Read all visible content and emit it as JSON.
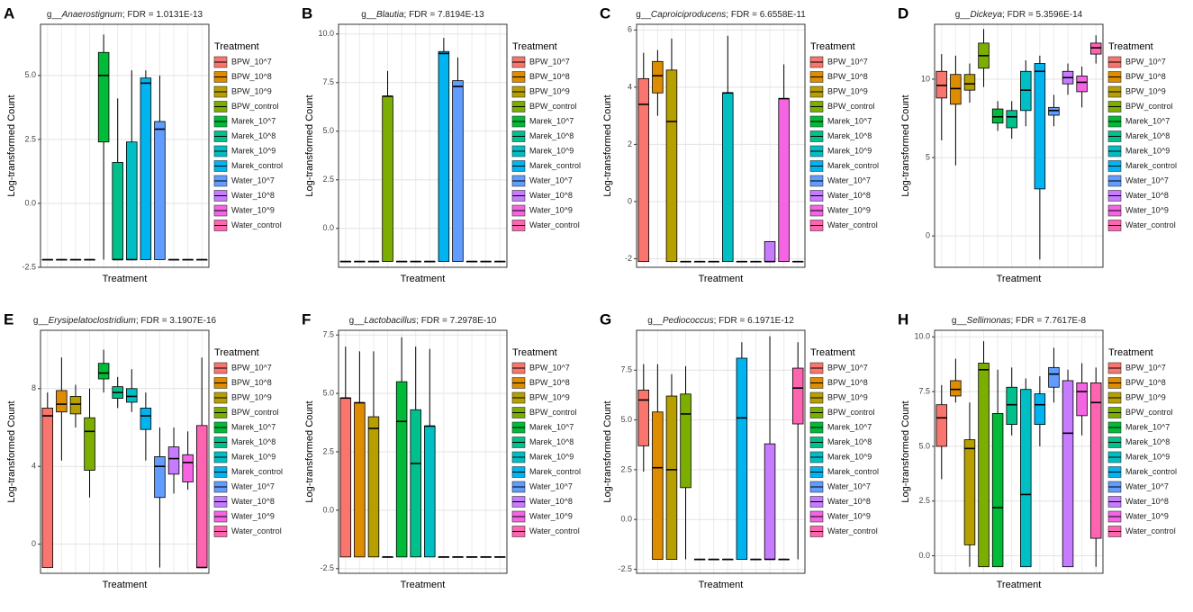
{
  "chart_data": [
    {
      "type": "box",
      "panel": "A",
      "title": [
        "g__",
        "Anaerostignum",
        "; FDR = 1.0131E-13"
      ],
      "x_label": "Treatment",
      "y_label": "Log-transformed Count",
      "legend_title": "Treatment",
      "categories": [
        "BPW_10^7",
        "BPW_10^8",
        "BPW_10^9",
        "BPW_control",
        "Marek_10^7",
        "Marek_10^8",
        "Marek_10^9",
        "Marek_control",
        "Water_10^7",
        "Water_10^8",
        "Water_10^9",
        "Water_control"
      ],
      "colors": [
        "#F8766D",
        "#DE8C00",
        "#B79F00",
        "#7CAE00",
        "#00BA38",
        "#00C08B",
        "#00BFC4",
        "#00B4F0",
        "#619CFF",
        "#C77CFF",
        "#F564E3",
        "#FF64B0"
      ],
      "ylim": [
        -2.5,
        7
      ],
      "yticks": [
        {
          "value": -2.5,
          "label": "-2.5"
        },
        {
          "value": 0,
          "label": "0.0"
        },
        {
          "value": 2.5,
          "label": "2.5"
        },
        {
          "value": 5,
          "label": "5.0"
        }
      ],
      "grid": true,
      "boxes": [
        [
          -2.2,
          -2.2,
          -2.2,
          -2.2,
          -2.2
        ],
        [
          -2.2,
          -2.2,
          -2.2,
          -2.2,
          -2.2
        ],
        [
          -2.2,
          -2.2,
          -2.2,
          -2.2,
          -2.2
        ],
        [
          -2.2,
          -2.2,
          -2.2,
          -2.2,
          -2.2
        ],
        [
          -2.2,
          2.4,
          5.0,
          5.9,
          6.6
        ],
        [
          -2.2,
          -2.2,
          -2.2,
          1.6,
          4.1
        ],
        [
          -2.2,
          -2.2,
          -2.2,
          2.4,
          5.2
        ],
        [
          -2.2,
          -2.2,
          4.7,
          4.9,
          5.2
        ],
        [
          -2.2,
          -2.2,
          2.9,
          3.2,
          5.0
        ],
        [
          -2.2,
          -2.2,
          -2.2,
          -2.2,
          -2.2
        ],
        [
          -2.2,
          -2.2,
          -2.2,
          -2.2,
          -2.2
        ],
        [
          -2.2,
          -2.2,
          -2.2,
          -2.2,
          -2.2
        ]
      ]
    },
    {
      "type": "box",
      "panel": "B",
      "title": [
        "g__",
        "Blautia",
        "; FDR = 7.8194E-13"
      ],
      "x_label": "Treatment",
      "y_label": "Log-transformed Count",
      "legend_title": "Treatment",
      "categories": [
        "BPW_10^7",
        "BPW_10^8",
        "BPW_10^9",
        "BPW_control",
        "Marek_10^7",
        "Marek_10^8",
        "Marek_10^9",
        "Marek_control",
        "Water_10^7",
        "Water_10^8",
        "Water_10^9",
        "Water_control"
      ],
      "colors": [
        "#F8766D",
        "#DE8C00",
        "#B79F00",
        "#7CAE00",
        "#00BA38",
        "#00C08B",
        "#00BFC4",
        "#00B4F0",
        "#619CFF",
        "#C77CFF",
        "#F564E3",
        "#FF64B0"
      ],
      "ylim": [
        -2,
        10.5
      ],
      "yticks": [
        {
          "value": 0,
          "label": "0.0"
        },
        {
          "value": 2.5,
          "label": "2.5"
        },
        {
          "value": 5,
          "label": "5.0"
        },
        {
          "value": 7.5,
          "label": "7.5"
        },
        {
          "value": 10,
          "label": "10.0"
        }
      ],
      "grid": true,
      "boxes": [
        [
          -1.7,
          -1.7,
          -1.7,
          -1.7,
          -1.7
        ],
        [
          -1.7,
          -1.7,
          -1.7,
          -1.7,
          -1.7
        ],
        [
          -1.7,
          -1.7,
          -1.7,
          -1.7,
          -1.7
        ],
        [
          -1.7,
          -1.7,
          6.8,
          6.8,
          8.1
        ],
        [
          -1.7,
          -1.7,
          -1.7,
          -1.7,
          -1.7
        ],
        [
          -1.7,
          -1.7,
          -1.7,
          -1.7,
          -1.7
        ],
        [
          -1.7,
          -1.7,
          -1.7,
          -1.7,
          -1.7
        ],
        [
          -1.7,
          -1.7,
          9.0,
          9.1,
          9.8
        ],
        [
          -1.7,
          -1.7,
          7.3,
          7.6,
          8.8
        ],
        [
          -1.7,
          -1.7,
          -1.7,
          -1.7,
          -1.7
        ],
        [
          -1.7,
          -1.7,
          -1.7,
          -1.7,
          -1.7
        ],
        [
          -1.7,
          -1.7,
          -1.7,
          -1.7,
          -1.7
        ]
      ]
    },
    {
      "type": "box",
      "panel": "C",
      "title": [
        "g__",
        "Caproiciproducens",
        "; FDR = 6.6558E-11"
      ],
      "x_label": "Treatment",
      "y_label": "Log-transformed Count",
      "legend_title": "Treatment",
      "categories": [
        "BPW_10^7",
        "BPW_10^8",
        "BPW_10^9",
        "BPW_control",
        "Marek_10^7",
        "Marek_10^8",
        "Marek_10^9",
        "Marek_control",
        "Water_10^7",
        "Water_10^8",
        "Water_10^9",
        "Water_control"
      ],
      "colors": [
        "#F8766D",
        "#DE8C00",
        "#B79F00",
        "#7CAE00",
        "#00BA38",
        "#00C08B",
        "#00BFC4",
        "#00B4F0",
        "#619CFF",
        "#C77CFF",
        "#F564E3",
        "#FF64B0"
      ],
      "ylim": [
        -2.3,
        6.2
      ],
      "yticks": [
        -2,
        0,
        2,
        4,
        6
      ],
      "grid": true,
      "boxes": [
        [
          -2.1,
          -2.1,
          3.4,
          4.3,
          5.2
        ],
        [
          3.0,
          3.8,
          4.4,
          4.9,
          5.3
        ],
        [
          -2.1,
          -2.1,
          2.8,
          4.6,
          5.7
        ],
        [
          -2.1,
          -2.1,
          -2.1,
          -2.1,
          -2.1
        ],
        [
          -2.1,
          -2.1,
          -2.1,
          -2.1,
          -2.1
        ],
        [
          -2.1,
          -2.1,
          -2.1,
          -2.1,
          -2.1
        ],
        [
          -2.1,
          -2.1,
          3.8,
          3.8,
          5.8
        ],
        [
          -2.1,
          -2.1,
          -2.1,
          -2.1,
          -2.1
        ],
        [
          -2.1,
          -2.1,
          -2.1,
          -2.1,
          -2.1
        ],
        [
          -2.1,
          -2.1,
          -2.1,
          -1.4,
          -1.4
        ],
        [
          -2.1,
          -2.1,
          3.6,
          3.6,
          4.8
        ],
        [
          -2.1,
          -2.1,
          -2.1,
          -2.1,
          -2.1
        ]
      ]
    },
    {
      "type": "box",
      "panel": "D",
      "title": [
        "g__",
        "Dickeya",
        "; FDR = 5.3596E-14"
      ],
      "x_label": "Treatment",
      "y_label": "Log-transformed Count",
      "legend_title": "Treatment",
      "categories": [
        "BPW_10^7",
        "BPW_10^8",
        "BPW_10^9",
        "BPW_control",
        "Marek_10^7",
        "Marek_10^8",
        "Marek_10^9",
        "Marek_control",
        "Water_10^7",
        "Water_10^8",
        "Water_10^9",
        "Water_control"
      ],
      "colors": [
        "#F8766D",
        "#DE8C00",
        "#B79F00",
        "#7CAE00",
        "#00BA38",
        "#00C08B",
        "#00BFC4",
        "#00B4F0",
        "#619CFF",
        "#C77CFF",
        "#F564E3",
        "#FF64B0"
      ],
      "ylim": [
        -2,
        13.5
      ],
      "yticks": [
        0,
        5,
        10
      ],
      "grid": true,
      "boxes": [
        [
          6.1,
          8.8,
          9.6,
          10.5,
          11.6
        ],
        [
          4.5,
          8.4,
          9.4,
          10.3,
          11.5
        ],
        [
          8.5,
          9.3,
          9.7,
          10.3,
          11.0
        ],
        [
          9.5,
          10.7,
          11.5,
          12.3,
          13.2
        ],
        [
          6.7,
          7.2,
          7.6,
          8.1,
          8.6
        ],
        [
          6.2,
          6.9,
          7.6,
          8.0,
          8.6
        ],
        [
          7.0,
          8.0,
          9.3,
          10.5,
          11.2
        ],
        [
          -1.5,
          3.0,
          10.5,
          11.0,
          11.5
        ],
        [
          7.0,
          7.7,
          8.0,
          8.2,
          9.0
        ],
        [
          9.0,
          9.7,
          10.1,
          10.5,
          11.0
        ],
        [
          8.2,
          9.2,
          9.8,
          10.2,
          10.8
        ],
        [
          11.0,
          11.6,
          12.0,
          12.3,
          12.8
        ]
      ]
    },
    {
      "type": "box",
      "panel": "E",
      "title": [
        "g__",
        "Erysipelatoclostridium",
        "; FDR = 3.1907E-16"
      ],
      "x_label": "Treatment",
      "y_label": "Log-transformed Count",
      "legend_title": "Treatment",
      "categories": [
        "BPW_10^7",
        "BPW_10^8",
        "BPW_10^9",
        "BPW_control",
        "Marek_10^7",
        "Marek_10^8",
        "Marek_10^9",
        "Marek_control",
        "Water_10^7",
        "Water_10^8",
        "Water_10^9",
        "Water_control"
      ],
      "colors": [
        "#F8766D",
        "#DE8C00",
        "#B79F00",
        "#7CAE00",
        "#00BA38",
        "#00C08B",
        "#00BFC4",
        "#00B4F0",
        "#619CFF",
        "#C77CFF",
        "#F564E3",
        "#FF64B0"
      ],
      "ylim": [
        -1.5,
        11
      ],
      "yticks": [
        0,
        4,
        8
      ],
      "grid": true,
      "boxes": [
        [
          -1.2,
          -1.2,
          6.6,
          7.0,
          7.8
        ],
        [
          4.3,
          6.8,
          7.2,
          7.9,
          9.6
        ],
        [
          6.0,
          6.7,
          7.2,
          7.6,
          8.2
        ],
        [
          2.4,
          3.8,
          5.8,
          6.5,
          8.0
        ],
        [
          7.8,
          8.5,
          8.8,
          9.3,
          10.0
        ],
        [
          7.0,
          7.5,
          7.8,
          8.1,
          8.6
        ],
        [
          6.8,
          7.3,
          7.6,
          8.0,
          9.0
        ],
        [
          4.3,
          5.9,
          6.6,
          7.0,
          7.8
        ],
        [
          -1.2,
          2.4,
          4.0,
          4.5,
          6.0
        ],
        [
          2.6,
          3.6,
          4.4,
          5.0,
          6.0
        ],
        [
          2.8,
          3.2,
          4.2,
          4.6,
          5.8
        ],
        [
          -1.2,
          -1.2,
          -1.2,
          6.1,
          9.6
        ]
      ]
    },
    {
      "type": "box",
      "panel": "F",
      "title": [
        "g__",
        "Lactobacillus",
        "; FDR = 7.2978E-10"
      ],
      "x_label": "Treatment",
      "y_label": "Log-transformed Count",
      "legend_title": "Treatment",
      "categories": [
        "BPW_10^7",
        "BPW_10^8",
        "BPW_10^9",
        "BPW_control",
        "Marek_10^7",
        "Marek_10^8",
        "Marek_10^9",
        "Marek_control",
        "Water_10^7",
        "Water_10^8",
        "Water_10^9",
        "Water_control"
      ],
      "colors": [
        "#F8766D",
        "#DE8C00",
        "#B79F00",
        "#7CAE00",
        "#00BA38",
        "#00C08B",
        "#00BFC4",
        "#00B4F0",
        "#619CFF",
        "#C77CFF",
        "#F564E3",
        "#FF64B0"
      ],
      "ylim": [
        -2.7,
        7.7
      ],
      "yticks": [
        {
          "value": -2.5,
          "label": "-2.5"
        },
        {
          "value": 0,
          "label": "0.0"
        },
        {
          "value": 2.5,
          "label": "2.5"
        },
        {
          "value": 5,
          "label": "5.0"
        },
        {
          "value": 7.5,
          "label": "7.5"
        }
      ],
      "grid": true,
      "boxes": [
        [
          -2.0,
          -2.0,
          4.8,
          4.8,
          7.0
        ],
        [
          -2.0,
          -2.0,
          4.6,
          4.6,
          6.8
        ],
        [
          -2.0,
          -2.0,
          3.5,
          4.0,
          6.8
        ],
        [
          -2.0,
          -2.0,
          -2.0,
          -2.0,
          -2.0
        ],
        [
          -2.0,
          -2.0,
          3.8,
          5.5,
          7.4
        ],
        [
          -2.0,
          -2.0,
          2.0,
          4.3,
          7.0
        ],
        [
          -2.0,
          -2.0,
          3.6,
          3.6,
          6.9
        ],
        [
          -2.0,
          -2.0,
          -2.0,
          -2.0,
          -2.0
        ],
        [
          -2.0,
          -2.0,
          -2.0,
          -2.0,
          -2.0
        ],
        [
          -2.0,
          -2.0,
          -2.0,
          -2.0,
          -2.0
        ],
        [
          -2.0,
          -2.0,
          -2.0,
          -2.0,
          -2.0
        ],
        [
          -2.0,
          -2.0,
          -2.0,
          -2.0,
          -2.0
        ]
      ]
    },
    {
      "type": "box",
      "panel": "G",
      "title": [
        "g__",
        "Pediococcus",
        "; FDR = 6.1971E-12"
      ],
      "x_label": "Treatment",
      "y_label": "Log-transformed Count",
      "legend_title": "Treatment",
      "categories": [
        "BPW_10^7",
        "BPW_10^8",
        "BPW_10^9",
        "BPW_control",
        "Marek_10^7",
        "Marek_10^8",
        "Marek_10^9",
        "Marek_control",
        "Water_10^7",
        "Water_10^8",
        "Water_10^9",
        "Water_control"
      ],
      "colors": [
        "#F8766D",
        "#DE8C00",
        "#B79F00",
        "#7CAE00",
        "#00BA38",
        "#00C08B",
        "#00BFC4",
        "#00B4F0",
        "#619CFF",
        "#C77CFF",
        "#F564E3",
        "#FF64B0"
      ],
      "ylim": [
        -2.7,
        9.5
      ],
      "yticks": [
        {
          "value": -2.5,
          "label": "-2.5"
        },
        {
          "value": 0,
          "label": "0.0"
        },
        {
          "value": 2.5,
          "label": "2.5"
        },
        {
          "value": 5,
          "label": "5.0"
        },
        {
          "value": 7.5,
          "label": "7.5"
        }
      ],
      "grid": true,
      "boxes": [
        [
          2.4,
          3.7,
          6.0,
          6.5,
          7.8
        ],
        [
          -2.0,
          -2.0,
          2.6,
          5.4,
          7.8
        ],
        [
          -2.0,
          -2.0,
          2.5,
          6.2,
          7.3
        ],
        [
          -2.0,
          1.6,
          5.3,
          6.3,
          7.7
        ],
        [
          -2.0,
          -2.0,
          -2.0,
          -2.0,
          -2.0
        ],
        [
          -2.0,
          -2.0,
          -2.0,
          -2.0,
          -2.0
        ],
        [
          -2.0,
          -2.0,
          -2.0,
          -2.0,
          -2.0
        ],
        [
          -2.0,
          -2.0,
          5.1,
          8.1,
          8.9
        ],
        [
          -2.0,
          -2.0,
          -2.0,
          -2.0,
          -2.0
        ],
        [
          -2.0,
          -2.0,
          -2.0,
          3.8,
          9.2
        ],
        [
          -2.0,
          -2.0,
          -2.0,
          -2.0,
          -2.0
        ],
        [
          -2.0,
          4.8,
          6.6,
          7.6,
          8.9
        ]
      ]
    },
    {
      "type": "box",
      "panel": "H",
      "title": [
        "g__",
        "Sellimonas",
        "; FDR = 7.7617E-8"
      ],
      "x_label": "Treatment",
      "y_label": "Log-transformed Count",
      "legend_title": "Treatment",
      "categories": [
        "BPW_10^7",
        "BPW_10^8",
        "BPW_10^9",
        "BPW_control",
        "Marek_10^7",
        "Marek_10^8",
        "Marek_10^9",
        "Marek_control",
        "Water_10^7",
        "Water_10^8",
        "Water_10^9",
        "Water_control"
      ],
      "colors": [
        "#F8766D",
        "#DE8C00",
        "#B79F00",
        "#7CAE00",
        "#00BA38",
        "#00C08B",
        "#00BFC4",
        "#00B4F0",
        "#619CFF",
        "#C77CFF",
        "#F564E3",
        "#FF64B0"
      ],
      "ylim": [
        -0.8,
        10.3
      ],
      "yticks": [
        {
          "value": 0,
          "label": "0.0"
        },
        {
          "value": 2.5,
          "label": "2.5"
        },
        {
          "value": 5,
          "label": "5.0"
        },
        {
          "value": 7.5,
          "label": "7.5"
        },
        {
          "value": 10,
          "label": "10.0"
        }
      ],
      "grid": true,
      "boxes": [
        [
          3.5,
          5.0,
          6.3,
          6.9,
          7.8
        ],
        [
          7.0,
          7.3,
          7.6,
          8.0,
          9.0
        ],
        [
          -0.5,
          0.5,
          4.9,
          5.3,
          7.0
        ],
        [
          -0.5,
          -0.5,
          8.5,
          8.8,
          9.8
        ],
        [
          -0.5,
          -0.5,
          2.2,
          6.5,
          8.5
        ],
        [
          5.5,
          6.0,
          6.9,
          7.7,
          8.6
        ],
        [
          -0.5,
          -0.5,
          2.8,
          7.6,
          8.1
        ],
        [
          5.0,
          6.0,
          6.9,
          7.4,
          8.2
        ],
        [
          7.0,
          7.7,
          8.3,
          8.6,
          9.5
        ],
        [
          -0.5,
          -0.5,
          5.6,
          8.0,
          8.5
        ],
        [
          5.5,
          6.4,
          7.5,
          7.9,
          8.8
        ],
        [
          -0.5,
          0.8,
          7.0,
          7.9,
          8.6
        ]
      ]
    }
  ]
}
